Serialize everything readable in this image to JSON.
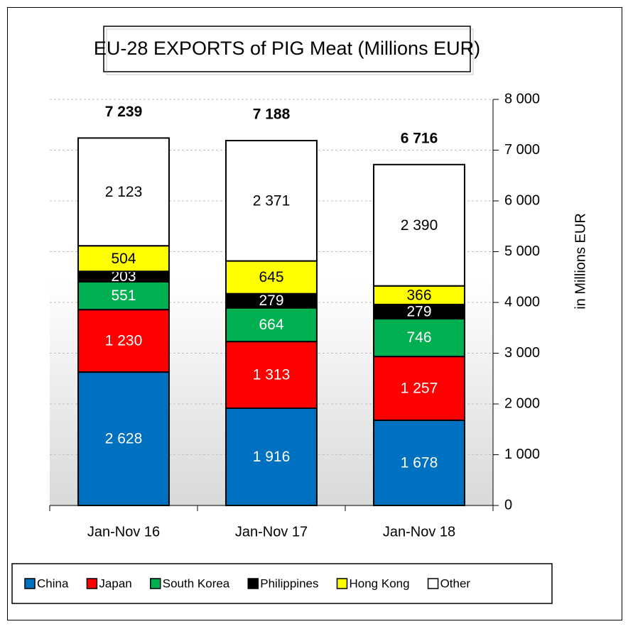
{
  "chart_data": {
    "type": "stacked_bar",
    "title": "EU-28 EXPORTS of PIG Meat (Millions EUR)",
    "y_axis_label": "in Millions EUR",
    "categories": [
      "Jan-Nov 16",
      "Jan-Nov 17",
      "Jan-Nov 18"
    ],
    "series": [
      {
        "name": "China",
        "color": "#0070c0",
        "values": [
          2628,
          1916,
          1678
        ],
        "value_labels": [
          "2 628",
          "1 916",
          "1 678"
        ]
      },
      {
        "name": "Japan",
        "color": "#ff0000",
        "values": [
          1230,
          1313,
          1257
        ],
        "value_labels": [
          "1 230",
          "1 313",
          "1 257"
        ]
      },
      {
        "name": "South Korea",
        "color": "#00b050",
        "values": [
          551,
          664,
          746
        ],
        "value_labels": [
          "551",
          "664",
          "746"
        ]
      },
      {
        "name": "Philippines",
        "color": "#000000",
        "values": [
          203,
          279,
          279
        ],
        "value_labels": [
          "203",
          "279",
          "279"
        ]
      },
      {
        "name": "Hong Kong",
        "color": "#ffff00",
        "values": [
          504,
          645,
          366
        ],
        "value_labels": [
          "504",
          "645",
          "366"
        ]
      },
      {
        "name": "Other",
        "color": "#ffffff",
        "values": [
          2123,
          2371,
          2390
        ],
        "value_labels": [
          "2 123",
          "2 371",
          "2 390"
        ]
      }
    ],
    "totals": [
      7239,
      7188,
      6716
    ],
    "total_labels": [
      "7 239",
      "7 188",
      "6 716"
    ],
    "ylim": [
      0,
      8000
    ],
    "yticks": [
      0,
      {
        "value": 1000,
        "label": "1 000"
      },
      {
        "value": 2000,
        "label": "2 000"
      },
      {
        "value": 3000,
        "label": "3 000"
      },
      {
        "value": 4000,
        "label": "4 000"
      },
      {
        "value": 5000,
        "label": "5 000"
      },
      {
        "value": 6000,
        "label": "6 000"
      },
      {
        "value": 7000,
        "label": "7 000"
      },
      {
        "value": 8000,
        "label": "8 000"
      }
    ],
    "y_axis_side": "right",
    "grid": true,
    "legend": "bottom"
  }
}
